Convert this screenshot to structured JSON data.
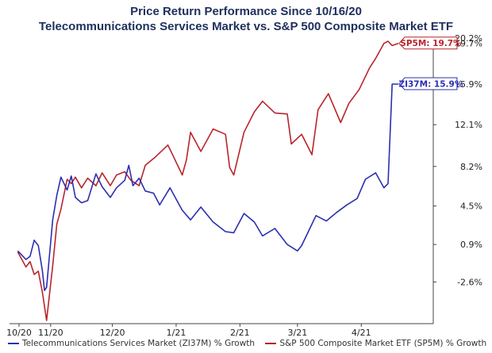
{
  "chart_data": {
    "type": "line",
    "title": "Price Return Performance Since 10/16/20",
    "subtitle": "Telecommunications Services Market   vs.  S&P 500 Composite Market ETF",
    "x_ticks": [
      "10/20",
      "11/20",
      "12/20",
      "1/21",
      "2/21",
      "3/21",
      "4/21"
    ],
    "y_ticks": [
      "-2.6%",
      "0.9%",
      "4.5%",
      "8.2%",
      "12.1%",
      "15.9%",
      "19.7%",
      "20.2%"
    ],
    "y_tick_values": [
      -2.6,
      0.9,
      4.5,
      8.2,
      12.1,
      15.9,
      19.7,
      20.2
    ],
    "ylim": [
      -6.5,
      20.2
    ],
    "grid": false,
    "legend_position": "bottom",
    "series": [
      {
        "name": "Telecommunications Services Market (ZI37M) % Growth",
        "color": "#2b2fb0",
        "end_label": "ZI37M: 15.9%",
        "x": [
          "2020-10-16",
          "2020-10-20",
          "2020-10-22",
          "2020-10-24",
          "2020-10-26",
          "2020-10-28",
          "2020-10-29",
          "2020-10-30",
          "2020-11-02",
          "2020-11-04",
          "2020-11-06",
          "2020-11-09",
          "2020-11-11",
          "2020-11-13",
          "2020-11-16",
          "2020-11-19",
          "2020-11-23",
          "2020-11-26",
          "2020-11-30",
          "2020-12-03",
          "2020-12-07",
          "2020-12-09",
          "2020-12-11",
          "2020-12-14",
          "2020-12-17",
          "2020-12-21",
          "2020-12-24",
          "2020-12-29",
          "2021-01-04",
          "2021-01-08",
          "2021-01-13",
          "2021-01-19",
          "2021-01-25",
          "2021-01-29",
          "2021-02-03",
          "2021-02-08",
          "2021-02-12",
          "2021-02-18",
          "2021-02-24",
          "2021-03-01",
          "2021-03-03",
          "2021-03-06",
          "2021-03-10",
          "2021-03-15",
          "2021-03-20",
          "2021-03-25",
          "2021-03-30",
          "2021-04-03",
          "2021-04-08",
          "2021-04-12",
          "2021-04-14",
          "2021-04-16",
          "2021-04-19"
        ],
        "values": [
          0.3,
          -0.5,
          -0.2,
          1.3,
          0.8,
          -1.6,
          -3.4,
          -3.1,
          3.2,
          5.5,
          7.2,
          6.0,
          7.3,
          5.3,
          4.8,
          5.0,
          7.5,
          6.3,
          5.3,
          6.2,
          6.9,
          8.3,
          6.4,
          7.1,
          5.9,
          5.7,
          4.6,
          6.2,
          4.1,
          3.2,
          4.4,
          3.0,
          2.1,
          2.0,
          3.8,
          3.0,
          1.7,
          2.4,
          0.9,
          0.3,
          0.8,
          2.0,
          3.6,
          3.1,
          3.9,
          4.6,
          5.2,
          7.0,
          7.6,
          6.2,
          6.6,
          15.9,
          15.9
        ]
      },
      {
        "name": "S&P 500 Composite Market ETF (SP5M) % Growth",
        "color": "#b8252b",
        "end_label": "SP5M: 19.7%",
        "x": [
          "2020-10-16",
          "2020-10-20",
          "2020-10-22",
          "2020-10-24",
          "2020-10-26",
          "2020-10-28",
          "2020-10-30",
          "2020-11-02",
          "2020-11-04",
          "2020-11-06",
          "2020-11-09",
          "2020-11-11",
          "2020-11-13",
          "2020-11-16",
          "2020-11-19",
          "2020-11-23",
          "2020-11-26",
          "2020-11-30",
          "2020-12-03",
          "2020-12-07",
          "2020-12-10",
          "2020-12-14",
          "2020-12-17",
          "2020-12-22",
          "2020-12-28",
          "2021-01-04",
          "2021-01-06",
          "2021-01-08",
          "2021-01-13",
          "2021-01-19",
          "2021-01-25",
          "2021-01-27",
          "2021-01-29",
          "2021-02-03",
          "2021-02-08",
          "2021-02-12",
          "2021-02-18",
          "2021-02-24",
          "2021-02-26",
          "2021-03-03",
          "2021-03-08",
          "2021-03-11",
          "2021-03-16",
          "2021-03-22",
          "2021-03-26",
          "2021-03-31",
          "2021-04-05",
          "2021-04-08",
          "2021-04-12",
          "2021-04-14",
          "2021-04-16",
          "2021-04-19"
        ],
        "values": [
          0.2,
          -1.2,
          -0.7,
          -1.9,
          -1.6,
          -3.6,
          -6.2,
          -1.1,
          2.8,
          4.2,
          7.0,
          6.6,
          7.2,
          6.2,
          7.1,
          6.4,
          7.6,
          6.4,
          7.4,
          7.7,
          6.9,
          6.4,
          8.3,
          9.1,
          10.2,
          7.4,
          8.8,
          11.4,
          9.6,
          11.7,
          11.2,
          8.1,
          7.4,
          11.4,
          13.3,
          14.3,
          13.2,
          13.1,
          10.3,
          11.2,
          9.3,
          13.5,
          15.0,
          12.3,
          14.1,
          15.4,
          17.4,
          18.3,
          19.7,
          19.9,
          19.5,
          19.7
        ]
      }
    ]
  }
}
